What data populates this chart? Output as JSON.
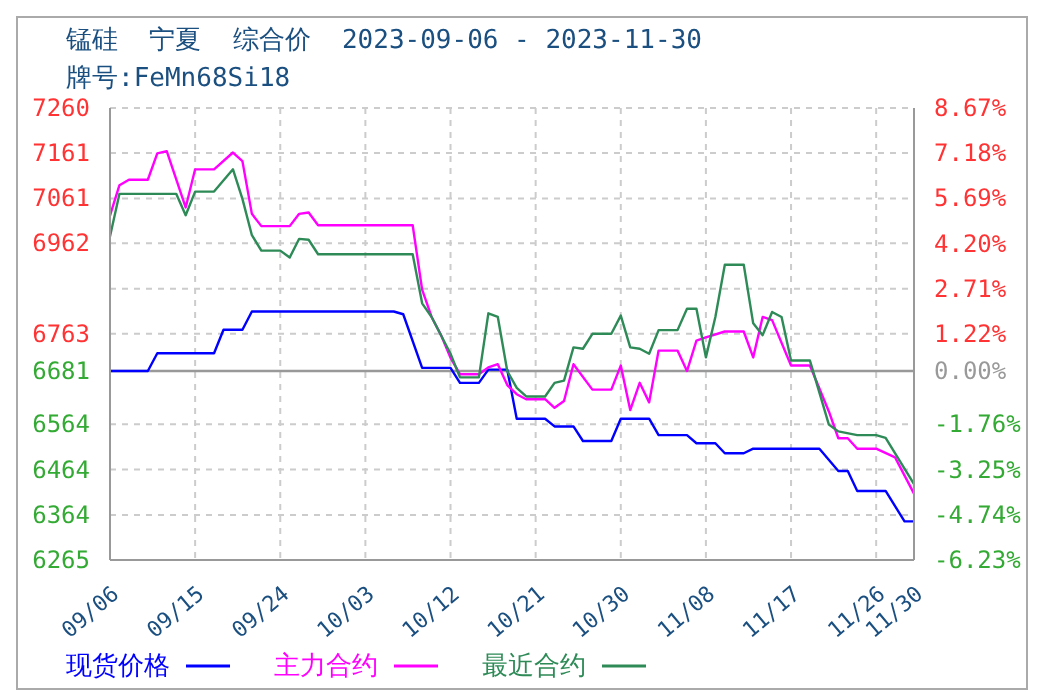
{
  "chart_data": {
    "type": "line",
    "title": "锰硅  宁夏  综合价  2023-09-06 - 2023-11-30",
    "subtitle": "牌号:FeMn68Si18",
    "xlim": [
      "2023-09-06",
      "2023-11-30"
    ],
    "xticks": [
      {
        "value": "2023-09-06",
        "label": "09/06"
      },
      {
        "value": "2023-09-15",
        "label": "09/15"
      },
      {
        "value": "2023-09-24",
        "label": "09/24"
      },
      {
        "value": "2023-10-03",
        "label": "10/03"
      },
      {
        "value": "2023-10-12",
        "label": "10/12"
      },
      {
        "value": "2023-10-21",
        "label": "10/21"
      },
      {
        "value": "2023-10-30",
        "label": "10/30"
      },
      {
        "value": "2023-11-08",
        "label": "11/08"
      },
      {
        "value": "2023-11-17",
        "label": "11/17"
      },
      {
        "value": "2023-11-26",
        "label": "11/26"
      },
      {
        "value": "2023-11-30",
        "label": "11/30"
      }
    ],
    "ylim": [
      6265,
      7260
    ],
    "yticks": [
      6265,
      6364,
      6464,
      6564,
      6681,
      6763,
      {
        "value": 6862,
        "label": null
      },
      6962,
      7061,
      7161,
      7260
    ],
    "y2lim": [
      -6.23,
      8.67
    ],
    "y2ticks": [
      {
        "value": -6.23,
        "label": "-6.23%"
      },
      {
        "value": -4.74,
        "label": "-4.74%"
      },
      {
        "value": -3.25,
        "label": "-3.25%"
      },
      {
        "value": -1.76,
        "label": "-1.76%"
      },
      {
        "value": 0,
        "label": "0.00%"
      },
      {
        "value": 1.22,
        "label": "1.22%"
      },
      {
        "value": 2.71,
        "label": "2.71%"
      },
      {
        "value": 4.2,
        "label": "4.20%"
      },
      {
        "value": 5.69,
        "label": "5.69%"
      },
      {
        "value": 7.18,
        "label": "7.18%"
      },
      {
        "value": 8.67,
        "label": "8.67%"
      }
    ],
    "ref_lines": [
      {
        "axis": "y2",
        "value": 0,
        "color": "#999999"
      }
    ],
    "grid": true,
    "legend": "bottom",
    "marker": "none",
    "line_style": "solid",
    "series": [
      {
        "name": "现货价格",
        "color": "#0000ff",
        "x": [
          "2023-09-06",
          "2023-09-10",
          "2023-09-11",
          "2023-09-17",
          "2023-09-18",
          "2023-09-20",
          "2023-09-21",
          "2023-10-06",
          "2023-10-07",
          "2023-10-09",
          "2023-10-12",
          "2023-10-13",
          "2023-10-15",
          "2023-10-16",
          "2023-10-18",
          "2023-10-19",
          "2023-10-22",
          "2023-10-23",
          "2023-10-25",
          "2023-10-26",
          "2023-10-29",
          "2023-10-30",
          "2023-11-02",
          "2023-11-03",
          "2023-11-06",
          "2023-11-07",
          "2023-11-09",
          "2023-11-10",
          "2023-11-12",
          "2023-11-13",
          "2023-11-20",
          "2023-11-22",
          "2023-11-23",
          "2023-11-24",
          "2023-11-27",
          "2023-11-29",
          "2023-11-30"
        ],
        "values": [
          6681,
          6681,
          6720,
          6720,
          6772,
          6772,
          6812,
          6812,
          6806,
          6688,
          6688,
          6655,
          6655,
          6684,
          6684,
          6576,
          6576,
          6559,
          6559,
          6527,
          6527,
          6576,
          6576,
          6540,
          6540,
          6522,
          6522,
          6500,
          6500,
          6510,
          6510,
          6461,
          6461,
          6417,
          6417,
          6350,
          6350
        ]
      },
      {
        "name": "主力合约",
        "color": "#ff00ff",
        "x": [
          "2023-09-06",
          "2023-09-07",
          "2023-09-08",
          "2023-09-10",
          "2023-09-11",
          "2023-09-12",
          "2023-09-14",
          "2023-09-15",
          "2023-09-17",
          "2023-09-19",
          "2023-09-20",
          "2023-09-21",
          "2023-09-22",
          "2023-09-25",
          "2023-09-26",
          "2023-09-27",
          "2023-09-28",
          "2023-10-08",
          "2023-10-09",
          "2023-10-10",
          "2023-10-11",
          "2023-10-12",
          "2023-10-13",
          "2023-10-15",
          "2023-10-16",
          "2023-10-17",
          "2023-10-18",
          "2023-10-19",
          "2023-10-20",
          "2023-10-22",
          "2023-10-23",
          "2023-10-24",
          "2023-10-25",
          "2023-10-27",
          "2023-10-29",
          "2023-10-30",
          "2023-10-31",
          "2023-11-01",
          "2023-11-02",
          "2023-11-03",
          "2023-11-05",
          "2023-11-06",
          "2023-11-07",
          "2023-11-08",
          "2023-11-10",
          "2023-11-12",
          "2023-11-13",
          "2023-11-14",
          "2023-11-15",
          "2023-11-17",
          "2023-11-19",
          "2023-11-21",
          "2023-11-22",
          "2023-11-23",
          "2023-11-24",
          "2023-11-26",
          "2023-11-28",
          "2023-11-30"
        ],
        "values": [
          7023,
          7090,
          7102,
          7102,
          7160,
          7165,
          7041,
          7125,
          7125,
          7162,
          7143,
          7027,
          7000,
          7000,
          7027,
          7030,
          7002,
          7002,
          6860,
          6800,
          6760,
          6710,
          6674,
          6674,
          6689,
          6696,
          6650,
          6630,
          6619,
          6619,
          6600,
          6615,
          6696,
          6640,
          6640,
          6693,
          6595,
          6655,
          6612,
          6726,
          6726,
          6681,
          6748,
          6755,
          6768,
          6768,
          6711,
          6800,
          6793,
          6693,
          6693,
          6592,
          6533,
          6533,
          6510,
          6510,
          6491,
          6411
        ]
      },
      {
        "name": "最近合约",
        "color": "#2e8b57",
        "x": [
          "2023-09-06",
          "2023-09-07",
          "2023-09-13",
          "2023-09-14",
          "2023-09-15",
          "2023-09-17",
          "2023-09-19",
          "2023-09-20",
          "2023-09-21",
          "2023-09-22",
          "2023-09-24",
          "2023-09-25",
          "2023-09-26",
          "2023-09-27",
          "2023-09-28",
          "2023-10-08",
          "2023-10-09",
          "2023-10-10",
          "2023-10-12",
          "2023-10-13",
          "2023-10-15",
          "2023-10-16",
          "2023-10-17",
          "2023-10-18",
          "2023-10-19",
          "2023-10-20",
          "2023-10-22",
          "2023-10-23",
          "2023-10-24",
          "2023-10-25",
          "2023-10-26",
          "2023-10-27",
          "2023-10-29",
          "2023-10-30",
          "2023-10-31",
          "2023-11-01",
          "2023-11-02",
          "2023-11-03",
          "2023-11-05",
          "2023-11-06",
          "2023-11-07",
          "2023-11-08",
          "2023-11-09",
          "2023-11-10",
          "2023-11-12",
          "2023-11-13",
          "2023-11-14",
          "2023-11-15",
          "2023-11-16",
          "2023-11-17",
          "2023-11-19",
          "2023-11-21",
          "2023-11-22",
          "2023-11-24",
          "2023-11-26",
          "2023-11-27",
          "2023-11-30"
        ],
        "values": [
          6977,
          7071,
          7071,
          7024,
          7076,
          7076,
          7125,
          7060,
          6980,
          6946,
          6946,
          6931,
          6972,
          6970,
          6938,
          6938,
          6830,
          6800,
          6719,
          6667,
          6667,
          6808,
          6800,
          6681,
          6644,
          6625,
          6625,
          6655,
          6660,
          6733,
          6730,
          6763,
          6763,
          6803,
          6733,
          6730,
          6719,
          6771,
          6771,
          6818,
          6818,
          6711,
          6800,
          6915,
          6915,
          6786,
          6760,
          6811,
          6800,
          6704,
          6704,
          6563,
          6548,
          6540,
          6540,
          6534,
          6432
        ]
      }
    ]
  }
}
